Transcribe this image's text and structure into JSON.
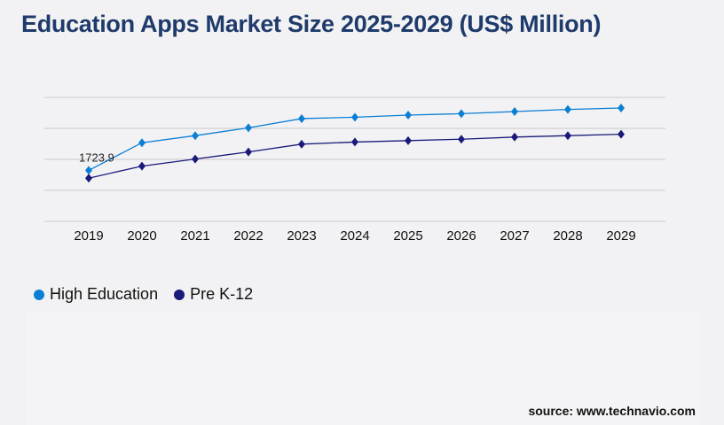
{
  "title": "Education Apps Market Size 2025-2029 (US$ Million)",
  "source": "source: www.technavio.com",
  "chart_data": {
    "type": "line",
    "title": "Education Apps Market Size 2025-2029 (US$ Million)",
    "xlabel": "",
    "ylabel": "",
    "categories": [
      "2019",
      "2020",
      "2021",
      "2022",
      "2023",
      "2024",
      "2025",
      "2026",
      "2027",
      "2028",
      "2029"
    ],
    "ylim": [
      0,
      4190
    ],
    "grid": true,
    "legend": "bottom-left",
    "series": [
      {
        "name": "High Education",
        "color": "#0a7fd4",
        "values": [
          1723.9,
          2657,
          2897,
          3161,
          3473,
          3520,
          3591,
          3639,
          3711,
          3783,
          3830
        ]
      },
      {
        "name": "Pre K-12",
        "color": "#1a1a7a",
        "values": [
          1460,
          1867,
          2107,
          2346,
          2609,
          2681,
          2729,
          2777,
          2849,
          2897,
          2944
        ]
      }
    ],
    "annotations": [
      {
        "category": "2019",
        "series": "High Education",
        "text": "1723.9"
      }
    ]
  }
}
